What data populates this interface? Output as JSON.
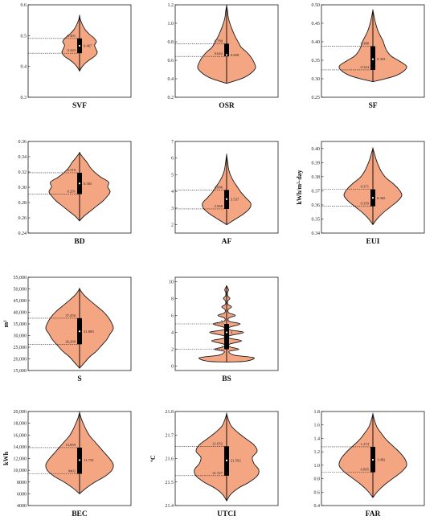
{
  "chart_data": [
    {
      "type": "violin",
      "xlabel": "SVF",
      "ylabel": "",
      "ylim": [
        0.3,
        0.6
      ],
      "yticks": [
        "0.3",
        "0.4",
        "0.5",
        "0.6"
      ],
      "q1": 0.443,
      "q3": 0.491,
      "median": 0.467,
      "min": 0.385,
      "max": 0.565,
      "labels": {
        "q3": "0.491",
        "q1": "0.443",
        "median": "0.467"
      }
    },
    {
      "type": "violin",
      "xlabel": "OSR",
      "ylabel": "",
      "ylim": [
        0.2,
        1.2
      ],
      "yticks": [
        "0.2",
        "0.4",
        "0.6",
        "0.8",
        "1.0",
        "1.2"
      ],
      "q1": 0.642,
      "q3": 0.78,
      "median": 0.658,
      "min": 0.35,
      "max": 1.19,
      "labels": {
        "q3": "0.780",
        "q1": "0.642",
        "median": "0.658"
      }
    },
    {
      "type": "violin",
      "xlabel": "SF",
      "ylabel": "",
      "ylim": [
        0.25,
        0.5
      ],
      "yticks": [
        "0.25",
        "0.30",
        "0.35",
        "0.40",
        "0.45",
        "0.50"
      ],
      "q1": 0.324,
      "q3": 0.388,
      "median": 0.353,
      "min": 0.292,
      "max": 0.485,
      "labels": {
        "q3": "0.388",
        "q1": "0.324",
        "median": "0.353"
      }
    },
    {
      "type": "violin",
      "xlabel": "BD",
      "ylabel": "",
      "ylim": [
        0.24,
        0.36
      ],
      "yticks": [
        "0.24",
        "0.26",
        "0.28",
        "0.30",
        "0.32",
        "0.34",
        "0.36"
      ],
      "q1": 0.291,
      "q3": 0.319,
      "median": 0.305,
      "min": 0.256,
      "max": 0.345,
      "labels": {
        "q3": "0.319",
        "q1": "0.291",
        "median": "0.305"
      }
    },
    {
      "type": "violin",
      "xlabel": "AF",
      "ylabel": "",
      "ylim": [
        1.5,
        7
      ],
      "yticks": [
        "2",
        "3",
        "4",
        "5",
        "6",
        "7"
      ],
      "q1": 2.948,
      "q3": 4.086,
      "median": 3.537,
      "min": 2.0,
      "max": 6.2,
      "labels": {
        "q3": "4.086",
        "q1": "2.948",
        "median": "3.537"
      }
    },
    {
      "type": "violin",
      "xlabel": "EUI",
      "ylabel": "kWh/m²·day",
      "ylim": [
        0.34,
        0.405
      ],
      "yticks": [
        "0.34",
        "0.35",
        "0.36",
        "0.37",
        "0.38",
        "0.39",
        "0.40"
      ],
      "q1": 0.359,
      "q3": 0.371,
      "median": 0.365,
      "min": 0.346,
      "max": 0.4,
      "labels": {
        "q3": "0.371",
        "q1": "0.359",
        "median": "0.365"
      }
    },
    {
      "type": "violin",
      "xlabel": "S",
      "ylabel": "m²",
      "ylim": [
        15000,
        55000
      ],
      "yticks": [
        "15,000",
        "20,000",
        "25,000",
        "30,000",
        "35,000",
        "40,000",
        "45,000",
        "50,000",
        "55,000"
      ],
      "q1": 26260,
      "q3": 37450,
      "median": 31800,
      "min": 16000,
      "max": 50000,
      "labels": {
        "q3": "37,450",
        "q1": "26,260",
        "median": "31,800"
      }
    },
    {
      "type": "violin",
      "xlabel": "BS",
      "ylabel": "",
      "ylim": [
        -0.5,
        10.5
      ],
      "yticks": [
        "0",
        "2",
        "4",
        "6",
        "8",
        "10"
      ],
      "q1": 2,
      "q3": 5,
      "median": 4,
      "min": 0.5,
      "max": 9.5,
      "labels": {
        "q3": "5",
        "q1": "2",
        "median": "4"
      }
    },
    null,
    {
      "type": "violin",
      "xlabel": "BEC",
      "ylabel": "kWh",
      "ylim": [
        4000,
        20000
      ],
      "yticks": [
        "4000",
        "6000",
        "8000",
        "10,000",
        "12,000",
        "14,000",
        "16,000",
        "18,000",
        "20,000"
      ],
      "q1": 9402,
      "q3": 13859,
      "median": 11733,
      "min": 6000,
      "max": 19800,
      "labels": {
        "q3": "13,859",
        "q1": "9402",
        "median": "11,733"
      }
    },
    {
      "type": "violin",
      "xlabel": "UTCI",
      "ylabel": "ºC",
      "ylim": [
        21.4,
        21.8
      ],
      "yticks": [
        "21.4",
        "21.5",
        "21.6",
        "21.7",
        "21.8"
      ],
      "q1": 21.527,
      "q3": 21.652,
      "median": 21.592,
      "min": 21.42,
      "max": 21.79,
      "labels": {
        "q3": "21.652",
        "q1": "21.527",
        "median": "21.592"
      }
    },
    {
      "type": "violin",
      "xlabel": "FAR",
      "ylabel": "",
      "ylim": [
        0.4,
        1.8
      ],
      "yticks": [
        "0.4",
        "0.6",
        "0.8",
        "1.0",
        "1.2",
        "1.4",
        "1.6",
        "1.8"
      ],
      "q1": 0.895,
      "q3": 1.274,
      "median": 1.082,
      "min": 0.52,
      "max": 1.76,
      "labels": {
        "q3": "1.274",
        "q1": "0.895",
        "median": "1.082"
      }
    }
  ]
}
